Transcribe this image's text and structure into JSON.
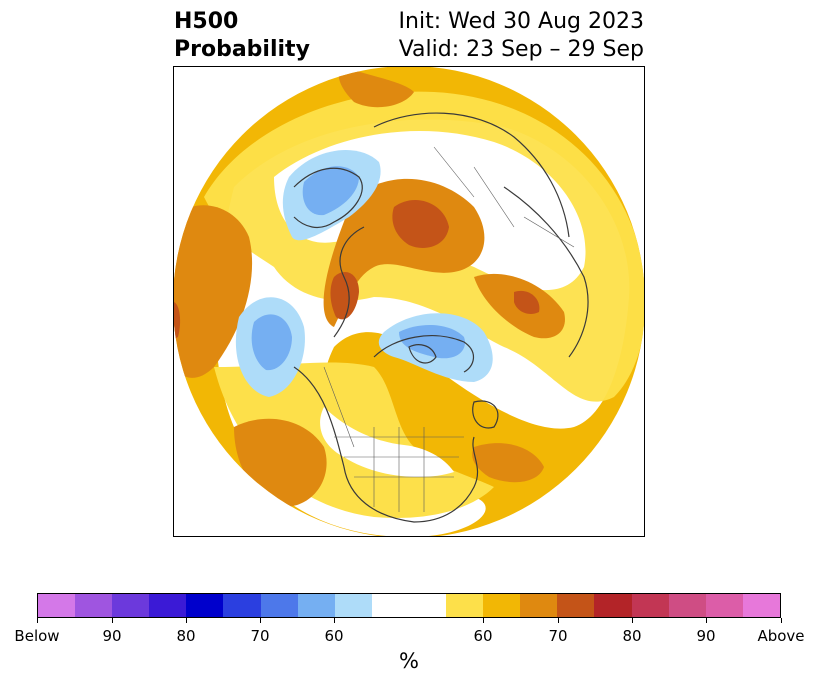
{
  "title": {
    "line1": "H500",
    "line2": "Probability",
    "init": "Init: Wed 30 Aug 2023",
    "valid": "Valid: 23 Sep – 29 Sep"
  },
  "colorbar": {
    "segments": [
      "#d478e8",
      "#9f55e0",
      "#6c39dc",
      "#3b1ad6",
      "#0000cc",
      "#2b3fe0",
      "#4d78ea",
      "#75aff2",
      "#aedcf9",
      "#ffffff",
      "#ffffff",
      "#fde04a",
      "#f2b705",
      "#df8910",
      "#c45418",
      "#b32428",
      "#c23654",
      "#cf4d84",
      "#dc5da8",
      "#e778da"
    ],
    "labels": [
      "Below",
      "90",
      "80",
      "70",
      "60",
      "60",
      "70",
      "80",
      "90",
      "Above"
    ],
    "unit": "%"
  },
  "map": {
    "legend_colors": {
      "blue_light": "#aedcf9",
      "blue": "#75aff2",
      "yellow": "#fde04a",
      "orange": "#f2b705",
      "dark_orange": "#df8910",
      "red_orange": "#c45418"
    }
  }
}
